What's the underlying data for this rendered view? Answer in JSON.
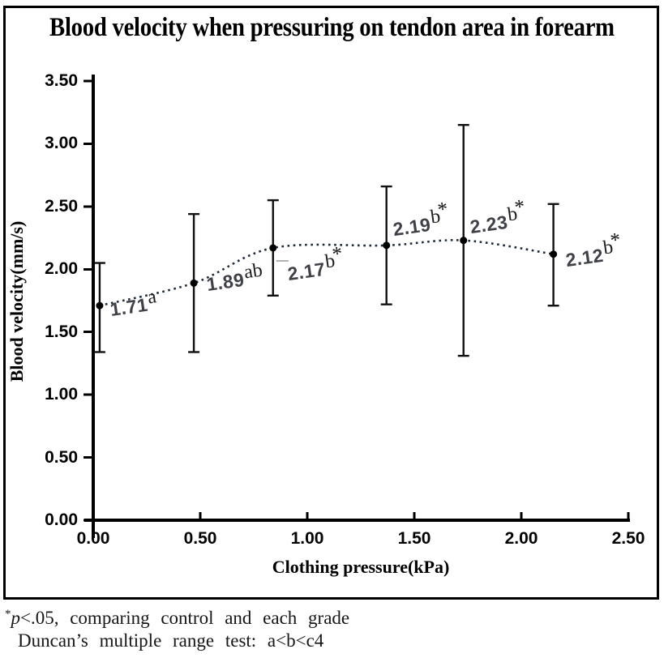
{
  "title": "Blood velocity when pressuring on tendon area in forearm",
  "footnote": {
    "line1_sup": "*",
    "line1_italic": "p",
    "line1_rest": "<.05, comparing control and each grade",
    "line2": "Duncan’s multiple range test: a<b<c4"
  },
  "chart_data": {
    "type": "scatter",
    "title": "Blood velocity when pressuring on tendon area in forearm",
    "xlabel": "Clothing pressure(kPa)",
    "ylabel": "Blood velocity(mm/s)",
    "xlim": [
      0,
      2.5
    ],
    "ylim": [
      0,
      3.5
    ],
    "x_ticks": [
      "0.00",
      "0.50",
      "1.00",
      "1.50",
      "2.00",
      "2.50"
    ],
    "y_ticks": [
      "0.00",
      "0.50",
      "1.00",
      "1.50",
      "2.00",
      "2.50",
      "3.00",
      "3.50"
    ],
    "grid": false,
    "legend": false,
    "trendline_style": "dotted",
    "marker_color": "#000000",
    "trendline_color": "#1e2a38",
    "label_color": "#3f4147",
    "points": [
      {
        "x": 0.03,
        "y": 1.71,
        "err_lo": 1.34,
        "err_hi": 2.05,
        "label": "1.71",
        "sup": "a",
        "star": "",
        "leader": false
      },
      {
        "x": 0.47,
        "y": 1.89,
        "err_lo": 1.34,
        "err_hi": 2.44,
        "label": "1.89",
        "sup": "ab",
        "star": "",
        "leader": false
      },
      {
        "x": 0.84,
        "y": 2.17,
        "err_lo": 1.79,
        "err_hi": 2.55,
        "label": "2.17",
        "sup": "b",
        "star": "*",
        "leader": true
      },
      {
        "x": 1.37,
        "y": 2.19,
        "err_lo": 1.72,
        "err_hi": 2.66,
        "label": "2.19",
        "sup": "b",
        "star": "*",
        "leader": false
      },
      {
        "x": 1.73,
        "y": 2.23,
        "err_lo": 1.31,
        "err_hi": 3.15,
        "label": "2.23",
        "sup": "b",
        "star": "*",
        "leader": false
      },
      {
        "x": 2.15,
        "y": 2.12,
        "err_lo": 1.71,
        "err_hi": 2.52,
        "label": "2.12",
        "sup": "b",
        "star": "*",
        "leader": false
      }
    ]
  }
}
